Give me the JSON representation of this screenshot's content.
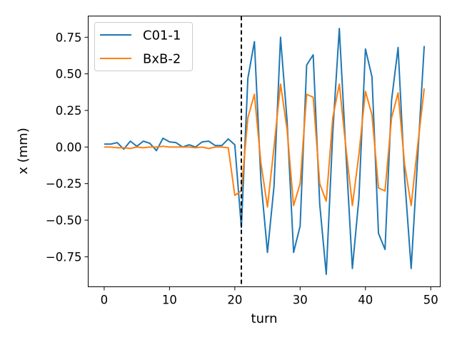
{
  "chart_data": {
    "type": "line",
    "xlabel": "turn",
    "ylabel": "x (mm)",
    "xlim": [
      -2.45,
      51.45
    ],
    "ylim": [
      -0.955,
      0.895
    ],
    "xticks": [
      0,
      10,
      20,
      30,
      40,
      50
    ],
    "yticks": [
      -0.75,
      -0.5,
      -0.25,
      0.0,
      0.25,
      0.5,
      0.75
    ],
    "ytick_labels": [
      "−0.75",
      "−0.50",
      "−0.25",
      "0.00",
      "0.25",
      "0.50",
      "0.75"
    ],
    "grid": false,
    "legend_position": "upper-left",
    "vline": {
      "x": 21,
      "style": "dashed",
      "color": "#000000"
    },
    "x": [
      0,
      1,
      2,
      3,
      4,
      5,
      6,
      7,
      8,
      9,
      10,
      11,
      12,
      13,
      14,
      15,
      16,
      17,
      18,
      19,
      20,
      21,
      22,
      23,
      24,
      25,
      26,
      27,
      28,
      29,
      30,
      31,
      32,
      33,
      34,
      35,
      36,
      37,
      38,
      39,
      40,
      41,
      42,
      43,
      44,
      45,
      46,
      47,
      48,
      49
    ],
    "series": [
      {
        "name": "C01-1",
        "color": "#1f77b4",
        "values": [
          0.02,
          0.02,
          0.03,
          -0.015,
          0.04,
          0.005,
          0.04,
          0.025,
          -0.025,
          0.06,
          0.035,
          0.03,
          0.0,
          0.015,
          0.0,
          0.035,
          0.04,
          0.01,
          0.01,
          0.055,
          0.015,
          -0.55,
          0.47,
          0.72,
          -0.23,
          -0.72,
          -0.27,
          0.75,
          0.18,
          -0.72,
          -0.54,
          0.56,
          0.63,
          -0.39,
          -0.87,
          0.1,
          0.81,
          -0.03,
          -0.83,
          -0.35,
          0.67,
          0.48,
          -0.59,
          -0.7,
          0.32,
          0.68,
          -0.21,
          -0.83,
          -0.07,
          0.69
        ]
      },
      {
        "name": "BxB-2",
        "color": "#ff7f0e",
        "values": [
          0.0,
          0.0,
          -0.005,
          -0.005,
          -0.01,
          0.0,
          -0.005,
          0.0,
          0.0,
          0.005,
          0.0,
          0.0,
          0.0,
          0.0,
          -0.005,
          0.0,
          -0.01,
          0.0,
          0.0,
          -0.005,
          -0.33,
          -0.3,
          0.2,
          0.36,
          -0.11,
          -0.41,
          0.0,
          0.43,
          0.12,
          -0.4,
          -0.25,
          0.36,
          0.34,
          -0.25,
          -0.37,
          0.2,
          0.43,
          0.0,
          -0.4,
          -0.05,
          0.38,
          0.22,
          -0.28,
          -0.3,
          0.2,
          0.37,
          -0.12,
          -0.4,
          0.01,
          0.4
        ]
      }
    ]
  }
}
